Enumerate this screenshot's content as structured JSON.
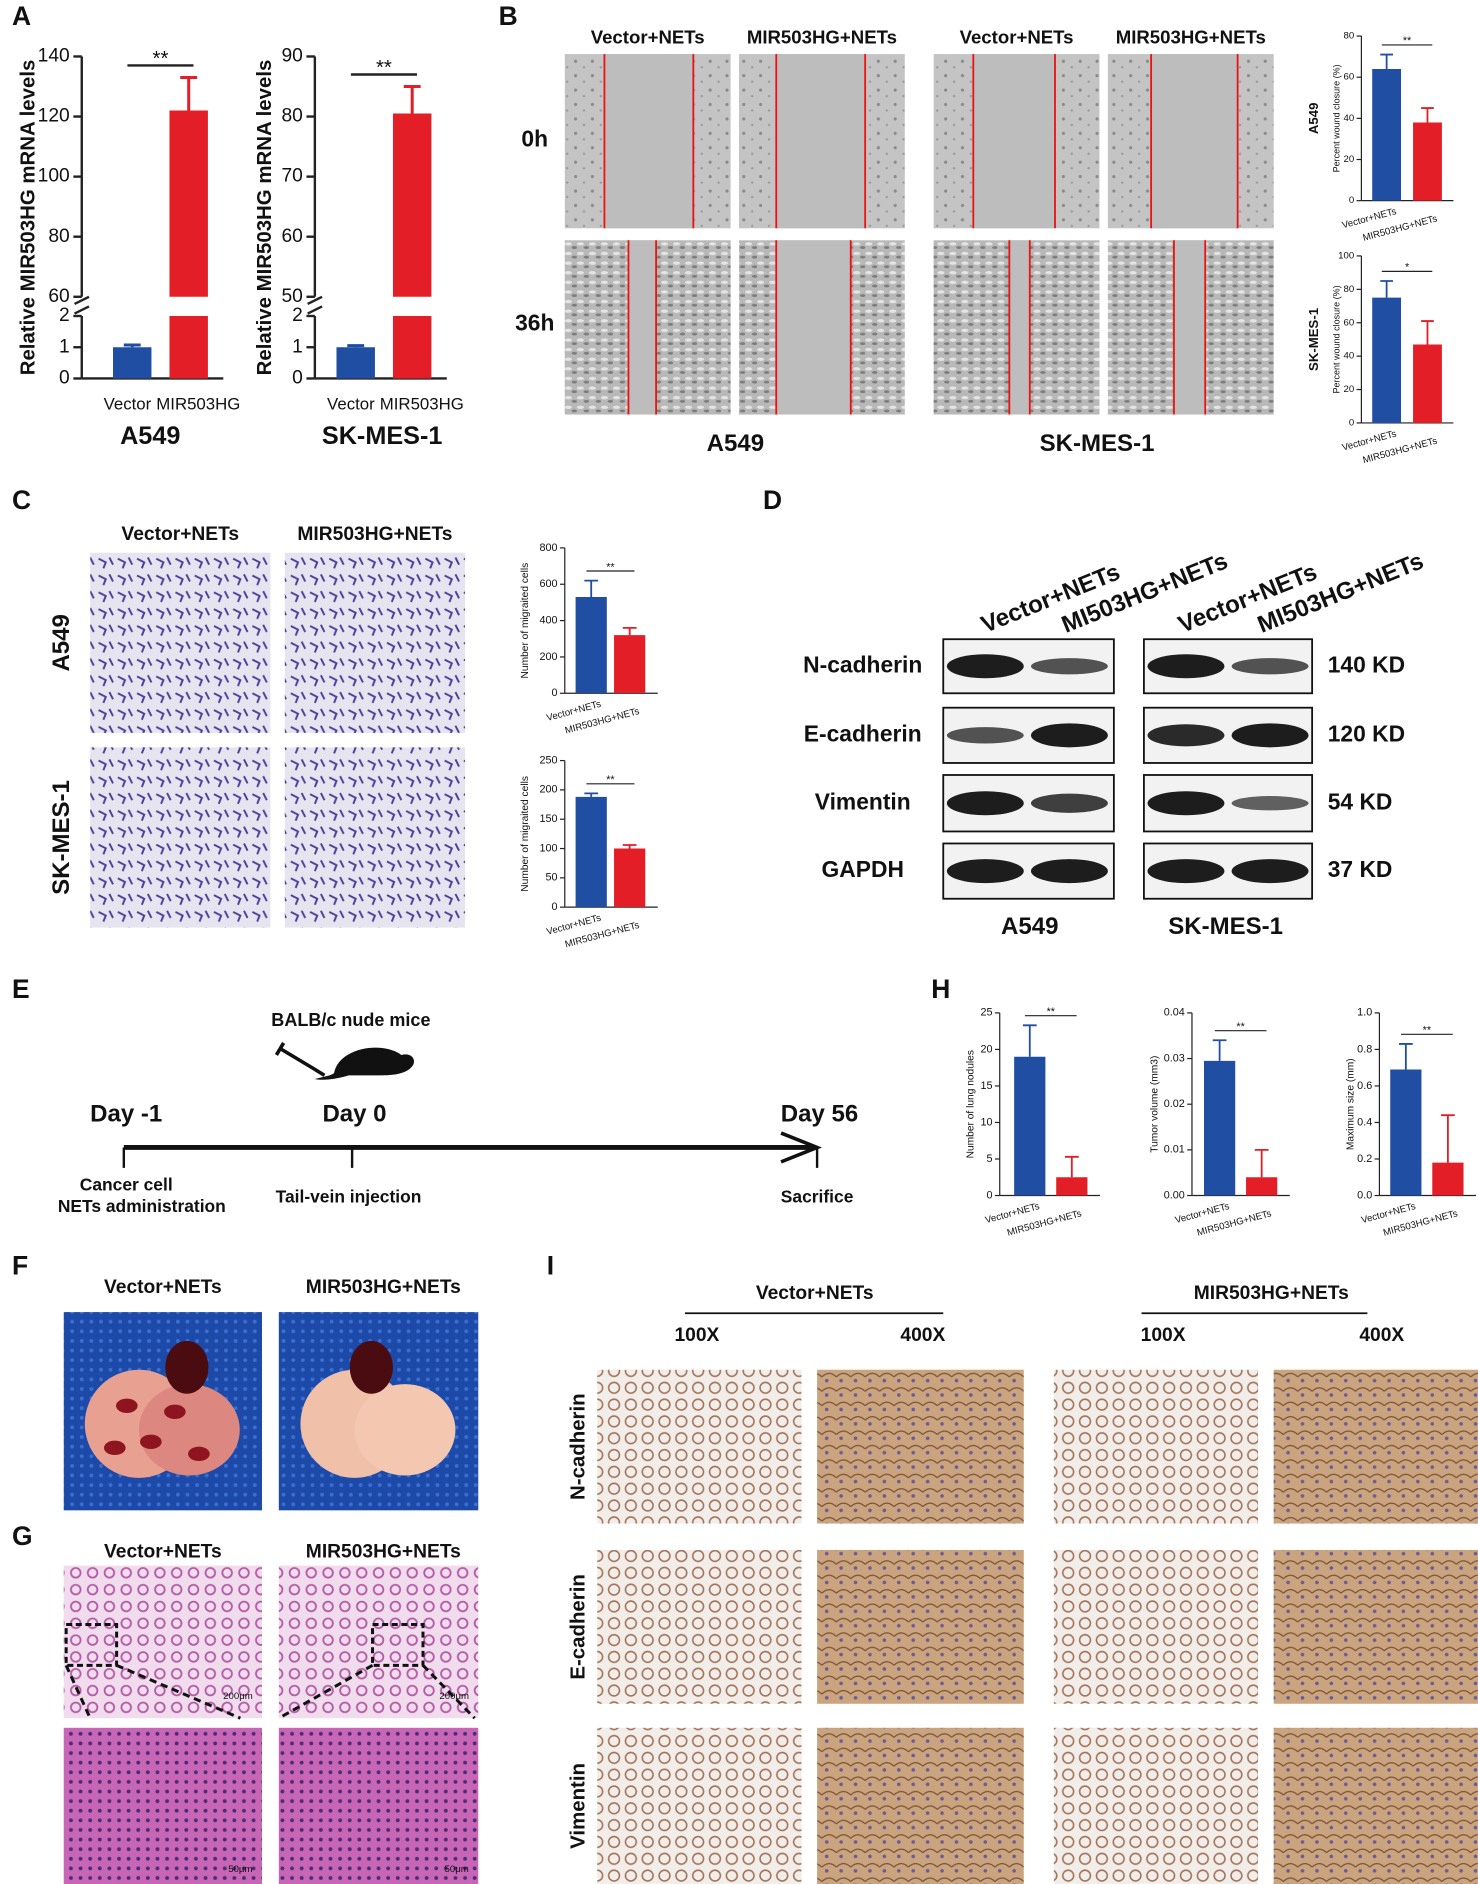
{
  "chart_data": [
    {
      "type": "bar",
      "xlabel": "A549",
      "ylabel": "Relative MIR503HG mRNA levels",
      "categories": [
        "Vector",
        "MIR503HG"
      ],
      "values": [
        1,
        122
      ],
      "errors": [
        0.07,
        11
      ],
      "colors": [
        "#1f4ea3",
        "#e41e26"
      ],
      "ylim": [
        0,
        140
      ],
      "axis_break": [
        2,
        60
      ],
      "yticks": [
        0,
        1,
        2,
        60,
        80,
        100,
        120,
        140
      ],
      "annotation": "**"
    },
    {
      "type": "bar",
      "xlabel": "SK-MES-1",
      "ylabel": "Relative MIR503HG mRNA levels",
      "categories": [
        "Vector",
        "MIR503HG"
      ],
      "values": [
        1,
        80.5
      ],
      "errors": [
        0.05,
        4.5
      ],
      "colors": [
        "#1f4ea3",
        "#e41e26"
      ],
      "ylim": [
        0,
        90
      ],
      "axis_break": [
        2,
        50
      ],
      "yticks": [
        0,
        1,
        2,
        50,
        60,
        70,
        80,
        90
      ],
      "annotation": "**"
    },
    {
      "type": "bar",
      "title": "A549",
      "ylabel": "Percent wound closure (%)",
      "categories": [
        "Vector+NETs",
        "MIR503HG+NETs"
      ],
      "values": [
        64,
        38
      ],
      "errors": [
        7,
        7
      ],
      "colors": [
        "#1f4ea3",
        "#e41e26"
      ],
      "ylim": [
        0,
        80
      ],
      "yticks": [
        0,
        20,
        40,
        60,
        80
      ],
      "annotation": "**"
    },
    {
      "type": "bar",
      "title": "SK-MES-1",
      "ylabel": "Percent wound closure (%)",
      "categories": [
        "Vector+NETs",
        "MIR503HG+NETs"
      ],
      "values": [
        75,
        47
      ],
      "errors": [
        10,
        14
      ],
      "colors": [
        "#1f4ea3",
        "#e41e26"
      ],
      "ylim": [
        0,
        100
      ],
      "yticks": [
        0,
        20,
        40,
        60,
        80,
        100
      ],
      "annotation": "*"
    },
    {
      "type": "bar",
      "ylabel": "Number of migraited cells",
      "categories": [
        "Vector+NETs",
        "MIR503HG+NETs"
      ],
      "values": [
        530,
        320
      ],
      "errors": [
        90,
        40
      ],
      "colors": [
        "#1f4ea3",
        "#e41e26"
      ],
      "ylim": [
        0,
        800
      ],
      "yticks": [
        0,
        200,
        400,
        600,
        800
      ],
      "annotation": "**"
    },
    {
      "type": "bar",
      "ylabel": "Number of migraited cells",
      "categories": [
        "Vector+NETs",
        "MIR503HG+NETs"
      ],
      "values": [
        188,
        100
      ],
      "errors": [
        6,
        6
      ],
      "colors": [
        "#1f4ea3",
        "#e41e26"
      ],
      "ylim": [
        0,
        250
      ],
      "yticks": [
        0,
        50,
        100,
        150,
        200,
        250
      ],
      "annotation": "**"
    },
    {
      "type": "bar",
      "ylabel": "Number of lung nodules",
      "categories": [
        "Vector+NETs",
        "MIR503HG+NETs"
      ],
      "values": [
        19,
        2.5
      ],
      "errors": [
        4.3,
        2.8
      ],
      "colors": [
        "#1f4ea3",
        "#e41e26"
      ],
      "ylim": [
        0,
        25
      ],
      "yticks": [
        0,
        5,
        10,
        15,
        20,
        25
      ],
      "annotation": "**"
    },
    {
      "type": "bar",
      "ylabel": "Tumor volume (mm3)",
      "categories": [
        "Vector+NETs",
        "MIR503HG+NETs"
      ],
      "values": [
        0.0295,
        0.004
      ],
      "errors": [
        0.0045,
        0.006
      ],
      "colors": [
        "#1f4ea3",
        "#e41e26"
      ],
      "ylim": [
        0,
        0.04
      ],
      "yticks": [
        {
          "value": 0,
          "label": "0.00"
        },
        {
          "value": 0.01,
          "label": "0.01"
        },
        {
          "value": 0.02,
          "label": "0.02"
        },
        {
          "value": 0.03,
          "label": "0.03"
        },
        {
          "value": 0.04,
          "label": "0.04"
        }
      ],
      "annotation": "**"
    },
    {
      "type": "bar",
      "ylabel": "Maximum size (mm)",
      "categories": [
        "Vector+NETs",
        "MIR503HG+NETs"
      ],
      "values": [
        0.69,
        0.18
      ],
      "errors": [
        0.14,
        0.26
      ],
      "colors": [
        "#1f4ea3",
        "#e41e26"
      ],
      "ylim": [
        0,
        1
      ],
      "yticks": [
        {
          "value": 0,
          "label": "0.0"
        },
        {
          "value": 0.2,
          "label": "0.2"
        },
        {
          "value": 0.4,
          "label": "0.4"
        },
        {
          "value": 0.6,
          "label": "0.6"
        },
        {
          "value": 0.8,
          "label": "0.8"
        },
        {
          "value": 1,
          "label": "1.0"
        }
      ],
      "annotation": "**"
    }
  ],
  "panel_labels": [
    "A",
    "B",
    "C",
    "D",
    "E",
    "F",
    "G",
    "H",
    "I"
  ],
  "B": {
    "columns": [
      "Vector+NETs",
      "MIR503HG+NETs",
      "Vector+NETs",
      "MIR503HG+NETs"
    ],
    "rows": [
      "0h",
      "36h"
    ],
    "cell_lines": [
      "A549",
      "SK-MES-1"
    ]
  },
  "C": {
    "columns": [
      "Vector+NETs",
      "MIR503HG+NETs"
    ],
    "rows": [
      "A549",
      "SK-MES-1"
    ]
  },
  "D": {
    "columns": [
      "Vector+NETs",
      "MI503HG+NETs",
      "Vector+NETs",
      "MI503HG+NETs"
    ],
    "proteins": [
      "N-cadherin",
      "E-cadherin",
      "Vimentin",
      "GAPDH"
    ],
    "sizes": [
      "140 KD",
      "120 KD",
      "54 KD",
      "37 KD"
    ],
    "cell_lines": [
      "A549",
      "SK-MES-1"
    ]
  },
  "E": {
    "model": "BALB/c nude mice",
    "days": [
      "Day -1",
      "Day 0",
      "Day 56"
    ],
    "events": [
      [
        "Cancer cell",
        "NETs administration"
      ],
      [
        "Tail-vein injection"
      ],
      [
        "Sacrifice"
      ]
    ]
  },
  "F": {
    "columns": [
      "Vector+NETs",
      "MIR503HG+NETs"
    ]
  },
  "G": {
    "columns": [
      "Vector+NETs",
      "MIR503HG+NETs"
    ],
    "scale_bars": [
      "200μm",
      "200μm",
      "50μm",
      "50μm"
    ]
  },
  "I": {
    "groups": [
      "Vector+NETs",
      "MIR503HG+NETs"
    ],
    "magnifications": [
      "100X",
      "400X",
      "100X",
      "400X"
    ],
    "rows": [
      "N-cadherin",
      "E-cadherin",
      "Vimentin"
    ]
  }
}
